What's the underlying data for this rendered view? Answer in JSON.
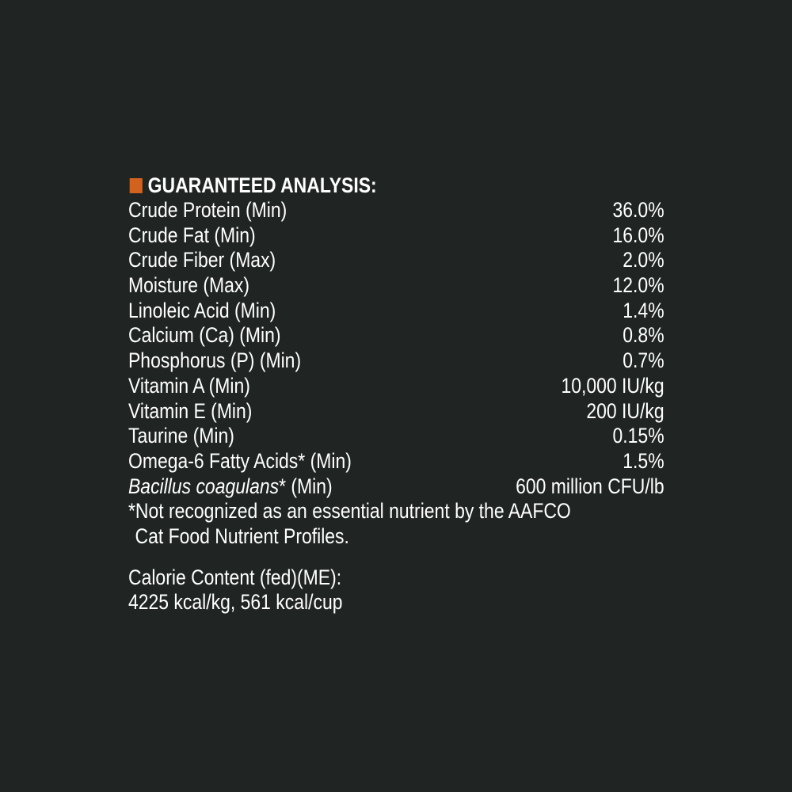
{
  "heading": "GUARANTEED ANALYSIS:",
  "accent_color": "#d3621f",
  "rows": [
    {
      "label": "Crude Protein (Min)",
      "value": "36.0%"
    },
    {
      "label": "Crude Fat (Min)",
      "value": "16.0%"
    },
    {
      "label": "Crude Fiber (Max)",
      "value": "2.0%"
    },
    {
      "label": "Moisture (Max)",
      "value": "12.0%"
    },
    {
      "label": "Linoleic Acid (Min)",
      "value": "1.4%"
    },
    {
      "label": "Calcium (Ca) (Min)",
      "value": "0.8%"
    },
    {
      "label": "Phosphorus (P) (Min)",
      "value": "0.7%"
    },
    {
      "label": "Vitamin A (Min)",
      "value": "10,000 IU/kg"
    },
    {
      "label": "Vitamin E (Min)",
      "value": "200 IU/kg"
    },
    {
      "label": "Taurine (Min)",
      "value": "0.15%"
    },
    {
      "label": "Omega-6 Fatty Acids* (Min)",
      "value": "1.5%"
    }
  ],
  "bacillus": {
    "italic": "Bacillus coagulans",
    "rest": "* (Min)",
    "value": "600 million CFU/lb"
  },
  "footnote": {
    "line1": "*Not recognized as an essential nutrient by the AAFCO",
    "line2": "Cat Food Nutrient Profiles."
  },
  "calorie": {
    "line1": "Calorie Content (fed)(ME):",
    "line2": "4225 kcal/kg, 561 kcal/cup"
  }
}
